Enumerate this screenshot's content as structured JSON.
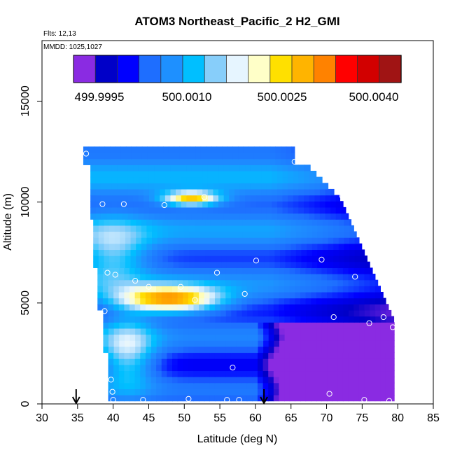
{
  "chart_data": {
    "type": "heatmap",
    "title": "ATOM3 Northeast_Pacific_2 H2_GMI",
    "flights_label": "Flts: 12,13",
    "dates_label": "MMDD: 1025,1027",
    "xlabel": "Latitude (deg N)",
    "ylabel": "Altitude (m)",
    "xlim": [
      30,
      85
    ],
    "ylim": [
      0,
      18000
    ],
    "x_ticks": [
      "30",
      "35",
      "40",
      "45",
      "50",
      "55",
      "60",
      "65",
      "70",
      "75",
      "80",
      "85"
    ],
    "y_ticks": [
      "0",
      "5000",
      "10000",
      "15000"
    ],
    "colorbar": {
      "tick_labels": [
        "499.9995",
        "500.0010",
        "500.0025",
        "500.0040"
      ],
      "colors": [
        "#8a2be2",
        "#0000c8",
        "#0000ff",
        "#1e6eff",
        "#1e90ff",
        "#00bfff",
        "#87cefa",
        "#e6f5ff",
        "#ffffc8",
        "#ffe000",
        "#ffb400",
        "#ff8200",
        "#ff0000",
        "#d20000",
        "#a01414"
      ]
    },
    "arrows_latitude": [
      34.8,
      61.2
    ],
    "sample_points": [
      [
        36.2,
        12400
      ],
      [
        65.5,
        12000
      ],
      [
        38.5,
        9900
      ],
      [
        41.5,
        9900
      ],
      [
        47.2,
        9850
      ],
      [
        52.8,
        10250
      ],
      [
        72.2,
        10300
      ],
      [
        77.5,
        7500
      ],
      [
        60.1,
        7100
      ],
      [
        69.3,
        7150
      ],
      [
        74,
        6300
      ],
      [
        39.2,
        6500
      ],
      [
        40.3,
        6400
      ],
      [
        54.6,
        6500
      ],
      [
        43.1,
        6100
      ],
      [
        45,
        5800
      ],
      [
        49.5,
        5800
      ],
      [
        51.5,
        5150
      ],
      [
        58.5,
        5450
      ],
      [
        38.8,
        4600
      ],
      [
        71,
        4300
      ],
      [
        76,
        4000
      ],
      [
        78,
        4300
      ],
      [
        79.3,
        3800
      ],
      [
        56.8,
        1800
      ],
      [
        39.7,
        1200
      ],
      [
        39.9,
        600
      ],
      [
        40,
        200
      ],
      [
        44.2,
        200
      ],
      [
        50.6,
        250
      ],
      [
        56,
        200
      ],
      [
        57.7,
        200
      ],
      [
        70.4,
        500
      ],
      [
        75.3,
        200
      ],
      [
        78.8,
        150
      ]
    ]
  }
}
